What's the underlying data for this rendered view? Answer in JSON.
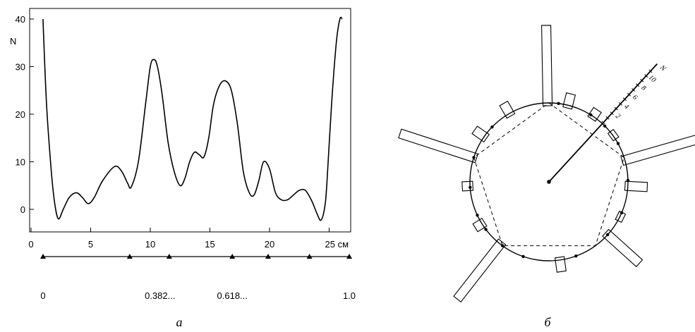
{
  "chart_data": [
    {
      "type": "line",
      "caption": "а",
      "ylabel": "N",
      "x_unit": "см",
      "xlim": [
        0,
        27
      ],
      "ylim": [
        -5,
        40
      ],
      "xticks": [
        0,
        5,
        10,
        15,
        20,
        25
      ],
      "yticks": [
        0,
        10,
        20,
        30,
        40
      ],
      "x_tick_labels": [
        "0",
        "5",
        "10",
        "15",
        "20",
        "25 см"
      ],
      "y_tick_labels": [
        "0",
        "10",
        "20",
        "30",
        "40"
      ],
      "grid": false,
      "legend": "none",
      "series": [
        {
          "x": [
            1.0,
            1.3,
            1.7,
            2.0,
            2.3,
            2.7,
            3.2,
            3.8,
            4.3,
            4.8,
            5.3,
            6.0,
            7.0,
            7.6,
            8.1,
            8.4,
            9.0,
            9.6,
            10.0,
            10.3,
            10.6,
            11.0,
            11.5,
            12.0,
            12.5,
            12.9,
            13.3,
            13.7,
            14.1,
            14.5,
            14.9,
            15.3,
            15.8,
            16.3,
            16.8,
            17.3,
            17.8,
            18.3,
            18.7,
            19.1,
            19.5,
            20.0,
            20.5,
            21.0,
            21.5,
            22.0,
            22.5,
            23.0,
            23.5,
            24.0,
            24.3,
            24.6,
            24.8,
            25.2,
            25.6,
            25.9,
            26.1
          ],
          "y": [
            40,
            22,
            8,
            1,
            -2,
            0,
            2.5,
            3.5,
            2.5,
            1.2,
            2.5,
            6,
            9,
            8,
            5.5,
            4.7,
            10,
            22,
            30,
            31.5,
            30,
            24,
            14,
            8,
            5,
            6.5,
            10,
            12,
            11.5,
            11,
            15,
            22,
            26,
            27,
            25,
            18,
            8,
            3.5,
            3,
            6,
            10,
            8.5,
            3.5,
            2,
            2,
            3,
            4,
            4,
            2,
            -1,
            -2.3,
            0,
            5,
            22,
            35,
            40,
            40
          ]
        }
      ],
      "number_line": {
        "min": 0,
        "max": 1.0,
        "marker_positions": [
          0,
          0.283,
          0.412,
          0.618,
          0.735,
          0.87,
          1.0
        ],
        "labels": [
          {
            "value": 0.0,
            "text": "0"
          },
          {
            "value": 0.382,
            "text": "0.382..."
          },
          {
            "value": 0.618,
            "text": "0.618..."
          },
          {
            "value": 1.0,
            "text": "1.0"
          }
        ]
      }
    },
    {
      "type": "diagram",
      "caption": "б",
      "radial_axis_label": "N",
      "radial_tick_labels": [
        "2",
        "4",
        "6",
        "8",
        "10"
      ],
      "bar_lengths_by_angle_deg": [
        {
          "angle": -91,
          "value": 10
        },
        {
          "angle": -76,
          "value": 1.5
        },
        {
          "angle": -56,
          "value": 1
        },
        {
          "angle": -36,
          "value": 0.5
        },
        {
          "angle": -16,
          "value": 10
        },
        {
          "angle": 3,
          "value": 2.5
        },
        {
          "angle": 26,
          "value": 0.5
        },
        {
          "angle": 42,
          "value": 5.5
        },
        {
          "angle": 82,
          "value": 1.5
        },
        {
          "angle": 128,
          "value": 9
        },
        {
          "angle": 148,
          "value": 1
        },
        {
          "angle": 177,
          "value": 1
        },
        {
          "angle": 198,
          "value": 10
        },
        {
          "angle": 215,
          "value": 1.5
        },
        {
          "angle": 240,
          "value": 1.5
        }
      ],
      "dots_angle_deg": [
        -83,
        -58,
        -45,
        -29,
        -1,
        23,
        42,
        70,
        109,
        126,
        143,
        155,
        176,
        198,
        224
      ]
    }
  ]
}
